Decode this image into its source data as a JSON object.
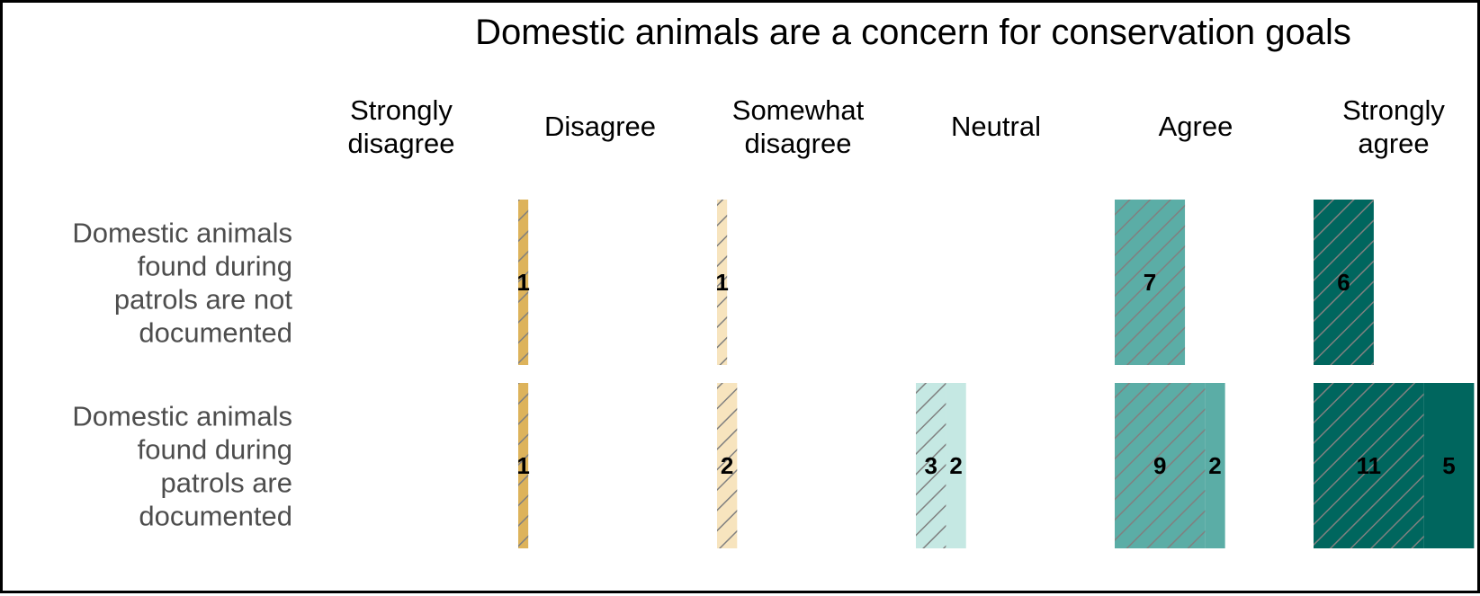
{
  "chart_data": {
    "type": "bar",
    "title": "Domestic animals are a concern for conservation goals",
    "xlabel": "",
    "ylabel": "",
    "legend": "none",
    "grid": false,
    "orientation": "horizontal",
    "facet_by": "response",
    "stacked": true,
    "xlim": [
      0,
      16
    ],
    "columns": [
      {
        "name": "Strongly\ndisagree",
        "color": "#D4A042"
      },
      {
        "name": "Disagree",
        "color": "#DDB35B"
      },
      {
        "name": "Somewhat\ndisagree",
        "color": "#F7E4BE"
      },
      {
        "name": "Neutral",
        "color": "#C5E8E3"
      },
      {
        "name": "Agree",
        "color": "#5BADA6"
      },
      {
        "name": "Strongly\nagree",
        "color": "#00665E"
      }
    ],
    "categories": [
      "Domestic animals\nfound during\npatrols are not\ndocumented",
      "Domestic animals\nfound during\npatrols are\ndocumented"
    ],
    "series": [
      {
        "name": "",
        "hatched": true,
        "values": [
          [
            0,
            1,
            1,
            0,
            7,
            6
          ],
          [
            0,
            1,
            2,
            3,
            9,
            11
          ]
        ]
      },
      {
        "name": "",
        "hatched": false,
        "values": [
          [
            0,
            0,
            0,
            0,
            0,
            0
          ],
          [
            0,
            0,
            0,
            2,
            2,
            5
          ]
        ]
      }
    ]
  }
}
